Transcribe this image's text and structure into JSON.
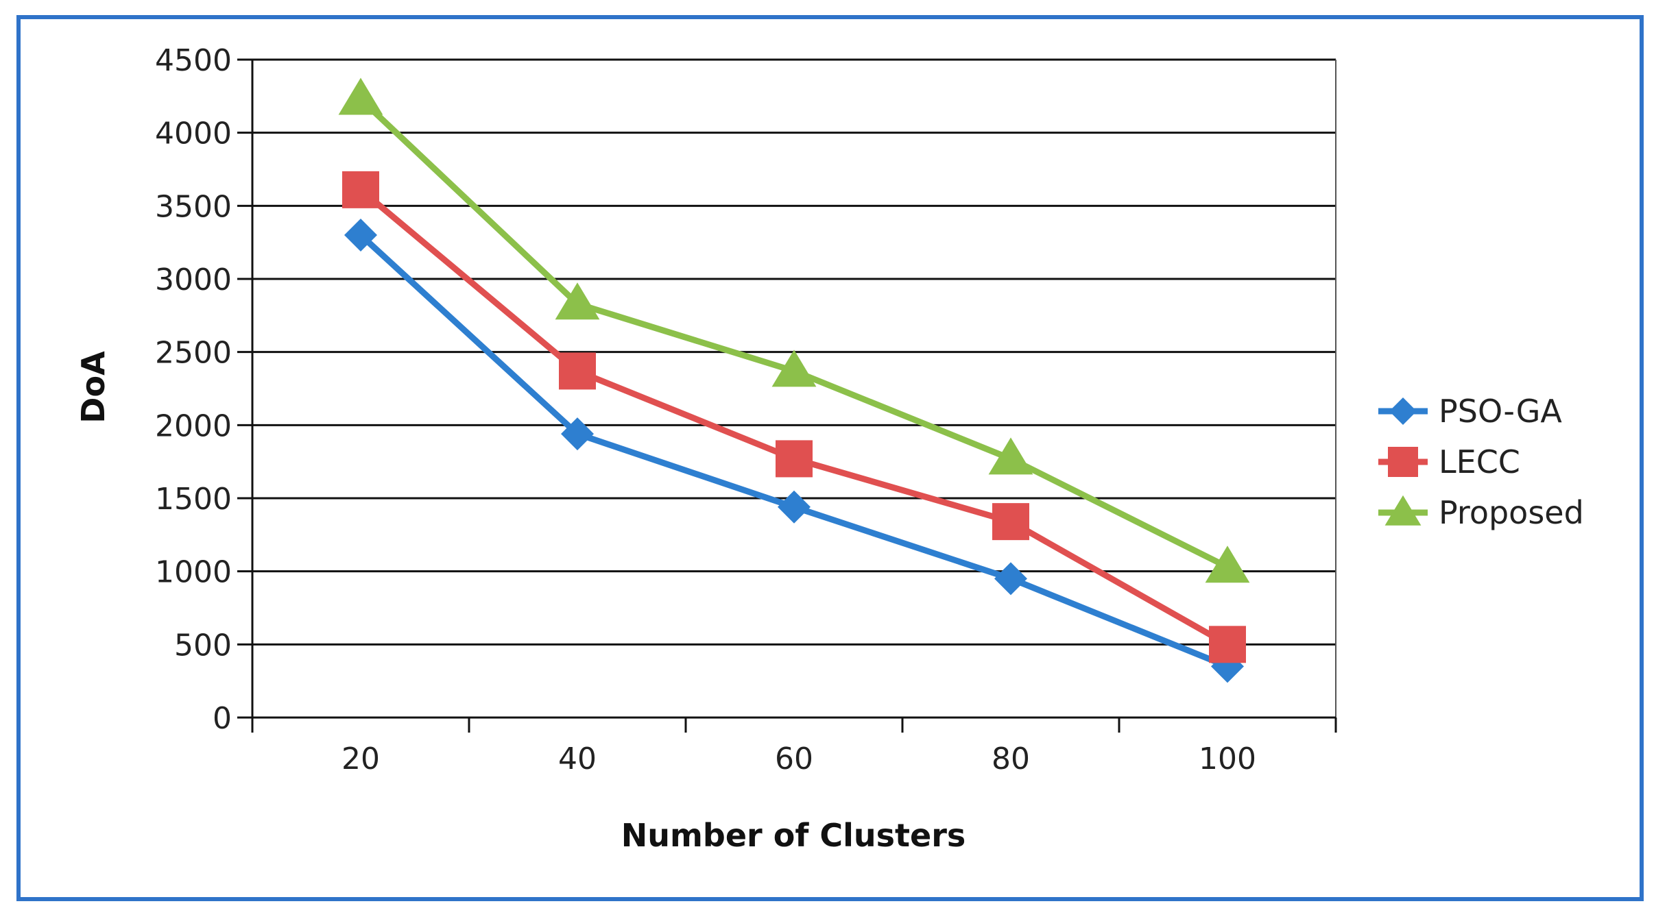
{
  "chart_data": {
    "type": "line",
    "title": "",
    "xlabel": "Number of Clusters",
    "ylabel": "DoA",
    "categories": [
      "20",
      "40",
      "60",
      "80",
      "100"
    ],
    "ylim": [
      0,
      4500
    ],
    "ytick_step": 500,
    "yticks": [
      "0",
      "500",
      "1000",
      "1500",
      "2000",
      "2500",
      "3000",
      "3500",
      "4000",
      "4500"
    ],
    "grid": true,
    "legend_position": "right",
    "series": [
      {
        "name": "PSO-GA",
        "values": [
          3300,
          1940,
          1440,
          950,
          350
        ],
        "color": "#2e7fd0",
        "marker": "diamond"
      },
      {
        "name": "LECC",
        "values": [
          3610,
          2370,
          1770,
          1340,
          500
        ],
        "color": "#e05050",
        "marker": "square"
      },
      {
        "name": "Proposed",
        "values": [
          4230,
          2830,
          2370,
          1770,
          1030
        ],
        "color": "#8cc04a",
        "marker": "triangle"
      }
    ]
  }
}
